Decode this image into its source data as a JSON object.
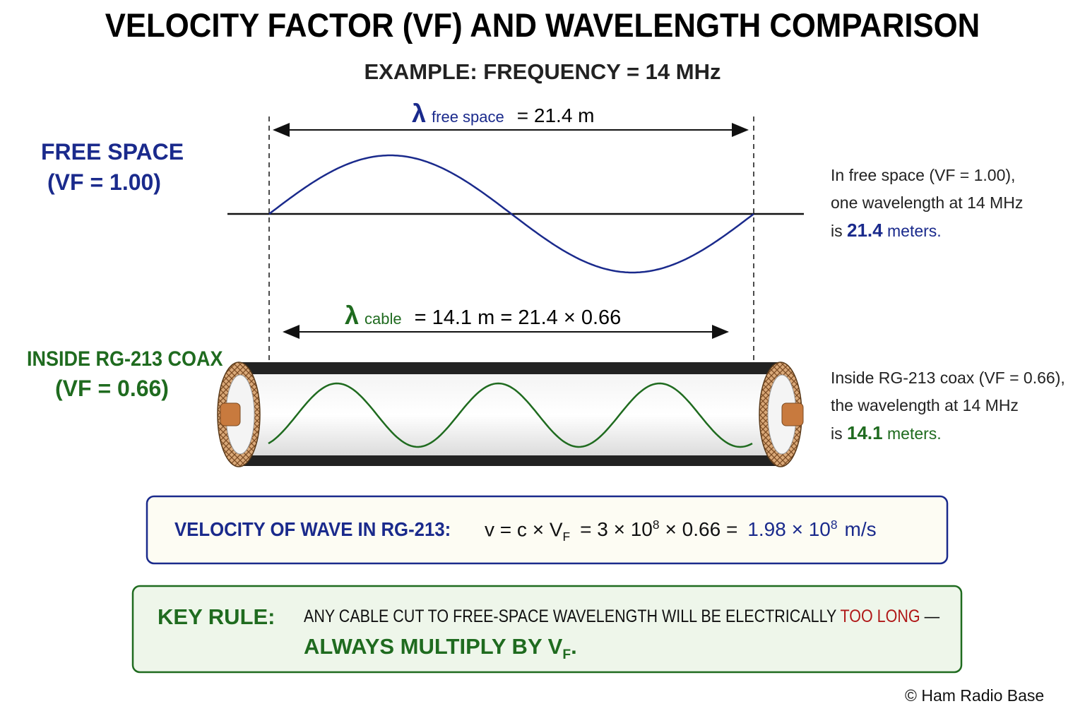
{
  "header": {
    "title": "VELOCITY FACTOR (VF) AND WAVELENGTH COMPARISON",
    "subtitle": "EXAMPLE: FREQUENCY = 14 MHz"
  },
  "free_space": {
    "label": "FREE SPACE",
    "vf": "(VF = 1.00)",
    "lambda_symbol": "λ",
    "lambda_sub": "free space",
    "lambda_value": "= 21.4 m",
    "note": {
      "line1": "In free space (VF = 1.00),",
      "line2": "one wavelength at 14 MHz",
      "is": "is",
      "value": "21.4",
      "unit": "meters."
    }
  },
  "coax": {
    "label": "INSIDE RG-213 COAX",
    "vf": "(VF = 0.66)",
    "lambda_symbol": "λ",
    "lambda_sub": "cable",
    "lambda_value": "= 14.1 m = 21.4 × 0.66",
    "note": {
      "line1": "Inside RG-213 coax (VF = 0.66),",
      "line2": "the wavelength at 14 MHz",
      "is": "is",
      "value": "14.1",
      "unit": "meters."
    }
  },
  "velocity_box": {
    "label": "VELOCITY OF WAVE IN RG-213:",
    "formula": [
      "v = c × V",
      "F",
      "= 3 × 10",
      "8",
      "× 0.66 =",
      "1.98 × 10",
      "8",
      "m/s"
    ]
  },
  "key_rule": {
    "label": "KEY RULE:",
    "text": "ANY CABLE CUT TO FREE-SPACE WAVELENGTH WILL BE ELECTRICALLY",
    "highlight": "TOO LONG",
    "dash": "—",
    "emphasis": "ALWAYS MULTIPLY BY V",
    "emphasis_sub": "F",
    "period": "."
  },
  "footer": "© Ham Radio Base"
}
